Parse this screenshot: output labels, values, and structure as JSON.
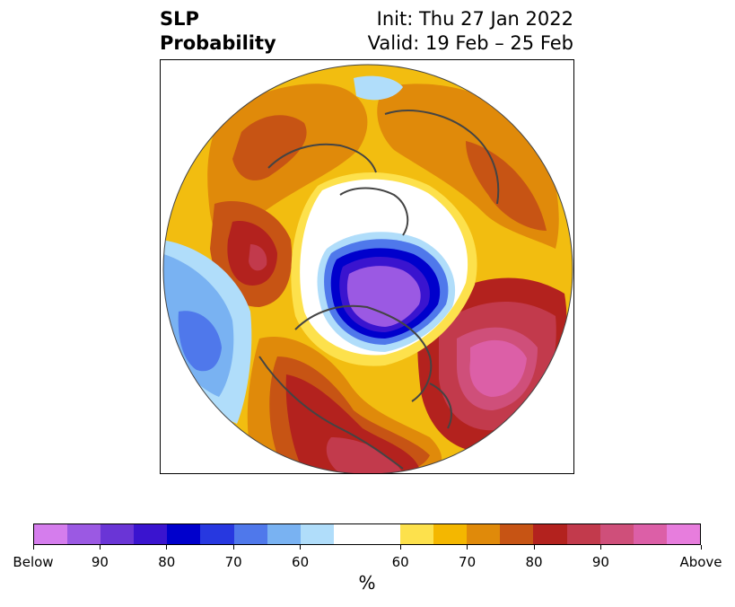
{
  "header": {
    "variable": "SLP",
    "product": "Probability",
    "init": "Init: Thu 27 Jan 2022",
    "valid": "Valid: 19 Feb – 25 Feb"
  },
  "colorbar": {
    "unit_label": "%",
    "below_colors": [
      "#d57ded",
      "#9b59e3",
      "#6a35d6",
      "#3a14cf",
      "#0000cc",
      "#2738e0",
      "#4f78eb",
      "#79b2f2",
      "#b0ddfa"
    ],
    "neutral_color": "#ffffff",
    "above_colors": [
      "#fde14c",
      "#f4b700",
      "#e08a0a",
      "#c75414",
      "#b3221e",
      "#c23a4c",
      "#cf4f7a",
      "#dc5fa7",
      "#e77ddd"
    ],
    "tick_labels": [
      "Below",
      "90",
      "80",
      "70",
      "60",
      "60",
      "70",
      "80",
      "90",
      "Above"
    ]
  }
}
